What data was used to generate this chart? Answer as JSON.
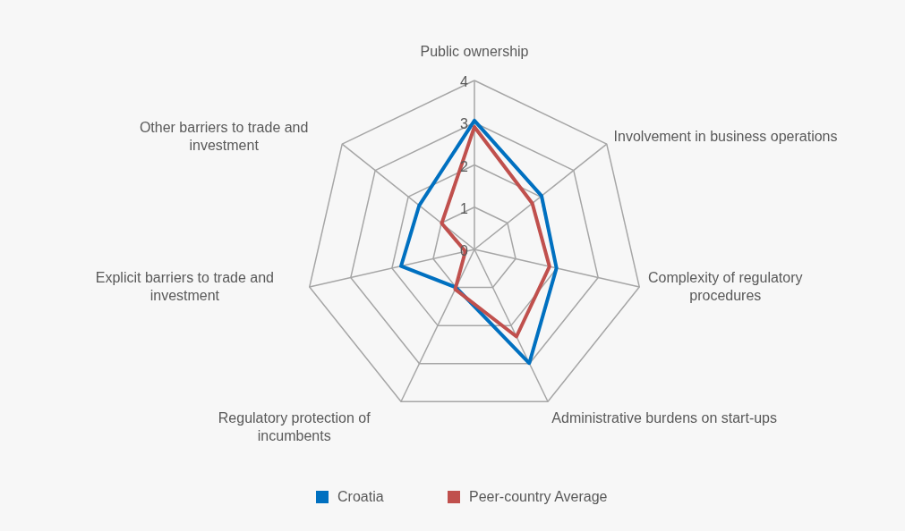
{
  "chart_data": {
    "type": "radar",
    "categories": [
      "Public ownership",
      "Involvement in business operations",
      "Complexity of regulatory procedures",
      "Administrative burdens on start-ups",
      "Regulatory protection of incumbents",
      "Explicit barriers to trade and investment",
      "Other barriers to trade and investment"
    ],
    "series": [
      {
        "name": "Croatia",
        "color": "#0070c0",
        "values": [
          3.05,
          2.03,
          1.99,
          2.99,
          1.0,
          1.78,
          1.67
        ]
      },
      {
        "name": "Peer-country Average",
        "color": "#c0504d",
        "values": [
          2.9,
          1.75,
          1.82,
          2.29,
          1.05,
          0.22,
          0.99
        ]
      }
    ],
    "ylim": [
      0,
      4
    ],
    "yticks": [
      0,
      1,
      2,
      3,
      4
    ],
    "grid": true,
    "legend": "bottom"
  }
}
